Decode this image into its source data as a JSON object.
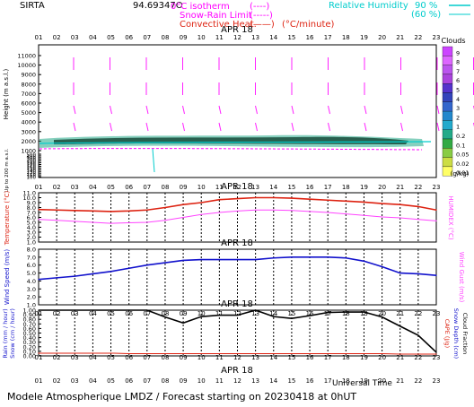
{
  "header": {
    "station": "SIRTA",
    "coords": "94.69347O",
    "legend_isotherm": "0°C isotherm",
    "legend_isotherm_sym": "(----)",
    "legend_snowrain": "Snow-Rain Limit",
    "legend_snowrain_sym": "(-----)",
    "legend_convective": "Convective Heat.",
    "legend_convective_sym": "(——)",
    "legend_convective_unit": "(°C/minute)",
    "rh_label": "Relative Humidity",
    "rh_90": "90 %",
    "rh_60": "(60 %)"
  },
  "footer": {
    "forecast": "Modele Atmospherique LMDZ / Forecast starting on 20230418 at 0hUT",
    "time_label": "Universal Time"
  },
  "colors": {
    "magenta": "#ff00ff",
    "red": "#dd2211",
    "blue": "#1111cc",
    "cyan": "#00cccc",
    "black": "#000000",
    "wind_arrow": "#ff22ff"
  },
  "chart_data": [
    {
      "type": "heatmap",
      "name_in_image": "top panel",
      "date_label": "APR 18",
      "x_label": "hour UT",
      "x_ticks": [
        "01",
        "02",
        "03",
        "04",
        "05",
        "06",
        "07",
        "08",
        "09",
        "10",
        "11",
        "12",
        "13",
        "14",
        "15",
        "16",
        "17",
        "18",
        "19",
        "20",
        "21",
        "22",
        "23"
      ],
      "ylabel": "Height (m a.s.l.)",
      "ylabel_low": "Up to 200 m a.s.l.",
      "y_ticks": [
        "11000",
        "10000",
        "9000",
        "8000",
        "7000",
        "6000",
        "5000",
        "4000",
        "3000",
        "2000",
        "1000",
        "500",
        "400",
        "300",
        "200",
        "190",
        "180",
        "170",
        "160",
        "150",
        "140",
        "130",
        "120",
        "110",
        "100"
      ],
      "clouds_label": "Clouds",
      "clouds_unit": "(g/kg)",
      "cloud_scale": [
        "9",
        "8",
        "7",
        "6",
        "5",
        "4",
        "3",
        "2",
        "1",
        "0.2",
        "0.1",
        "0.05",
        "0.02",
        "0.01"
      ],
      "cloud_scale_colors": [
        "#cc44ff",
        "#dd66ff",
        "#bb55ee",
        "#aa44dd",
        "#5533cc",
        "#3344bb",
        "#3366cc",
        "#2288cc",
        "#22aacc",
        "#22aa88",
        "#33aa44",
        "#88cc44",
        "#ccdd44",
        "#ffff66"
      ],
      "cloud_layer_height_m": [
        1000,
        2000
      ],
      "isotherm_0C_m": 1000
    },
    {
      "type": "line",
      "name_in_image": "temperature panel",
      "date_label": "APR 18",
      "ylabel": "Temperature (°C)",
      "ylabel_right": "HUMIDEX (°C)",
      "y_ticks": [
        "11.0",
        "10.0",
        "9.0",
        "8.0",
        "7.0",
        "6.0",
        "5.0",
        "4.0",
        "3.0",
        "2.0",
        "1.0"
      ],
      "ylim": [
        1,
        11
      ],
      "x": [
        1,
        2,
        3,
        4,
        5,
        6,
        7,
        8,
        9,
        10,
        11,
        12,
        13,
        14,
        15,
        16,
        17,
        18,
        19,
        20,
        21,
        22,
        23
      ],
      "series": [
        {
          "name": "Temperature",
          "color": "#dd2211",
          "values": [
            7.6,
            7.5,
            7.4,
            7.3,
            7.2,
            7.3,
            7.5,
            8.0,
            8.6,
            9.0,
            9.6,
            9.8,
            10.0,
            10.0,
            9.9,
            9.7,
            9.5,
            9.3,
            9.1,
            8.8,
            8.6,
            8.2,
            7.5
          ]
        },
        {
          "name": "HUMIDEX",
          "color": "#ff44ff",
          "values": [
            5.6,
            5.4,
            5.2,
            5.0,
            4.8,
            4.9,
            5.0,
            5.4,
            6.0,
            6.6,
            7.0,
            7.3,
            7.5,
            7.5,
            7.4,
            7.2,
            7.0,
            6.7,
            6.4,
            6.1,
            5.9,
            5.6,
            5.3
          ]
        }
      ]
    },
    {
      "type": "line",
      "name_in_image": "wind panel",
      "date_label": "APR 18",
      "ylabel": "Wind Speed (m/s)",
      "ylabel_right": "Wind Gust (m/s)",
      "y_ticks": [
        "8.0",
        "7.0",
        "6.0",
        "5.0",
        "4.0",
        "3.0",
        "2.0",
        "1.0"
      ],
      "ylim": [
        1,
        8
      ],
      "x": [
        1,
        2,
        3,
        4,
        5,
        6,
        7,
        8,
        9,
        10,
        11,
        12,
        13,
        14,
        15,
        16,
        17,
        18,
        19,
        20,
        21,
        22,
        23
      ],
      "series": [
        {
          "name": "Wind Speed",
          "color": "#1111cc",
          "values": [
            4.2,
            4.4,
            4.6,
            4.9,
            5.2,
            5.6,
            6.0,
            6.3,
            6.6,
            6.7,
            6.7,
            6.7,
            6.7,
            6.9,
            7.0,
            7.0,
            7.0,
            6.9,
            6.5,
            5.8,
            5.0,
            4.9,
            4.7
          ]
        }
      ]
    },
    {
      "type": "line",
      "name_in_image": "precipitation panel",
      "date_label": "APR 18",
      "ylabel": "Rain (mm / hour)",
      "ylabel_2": "Snow (cm / hour)",
      "ylabel_right": "CAPE (J/g)",
      "ylabel_right_2": "Snow Depth (cm)",
      "ylabel_right_3": "Cloud Fraction",
      "y_ticks": [
        "1.00",
        "0.90",
        "0.80",
        "0.70",
        "0.60",
        "0.50",
        "0.40",
        "0.30",
        "0.20",
        "0.10",
        "0.00"
      ],
      "ylim": [
        0,
        1
      ],
      "x": [
        1,
        2,
        3,
        4,
        5,
        6,
        7,
        8,
        9,
        10,
        11,
        12,
        13,
        14,
        15,
        16,
        17,
        18,
        19,
        20,
        21,
        22,
        23
      ],
      "series": [
        {
          "name": "Cloud Fraction",
          "color": "#000000",
          "values": [
            1.0,
            1.0,
            1.0,
            1.0,
            1.0,
            1.0,
            1.0,
            0.85,
            0.72,
            0.86,
            0.89,
            0.89,
            1.0,
            0.86,
            0.82,
            0.88,
            0.95,
            0.96,
            0.96,
            0.85,
            0.65,
            0.45,
            0.08
          ]
        },
        {
          "name": "Rain",
          "color": "#dd2211",
          "values": [
            0.06,
            0.06,
            0.06,
            0.06,
            0.06,
            0.05,
            0.05,
            0.05,
            0.05,
            0.05,
            0.05,
            0.05,
            0.05,
            0.05,
            0.05,
            0.05,
            0.05,
            0.05,
            0.05,
            0.05,
            0.04,
            0.04,
            0.04
          ]
        }
      ]
    }
  ]
}
